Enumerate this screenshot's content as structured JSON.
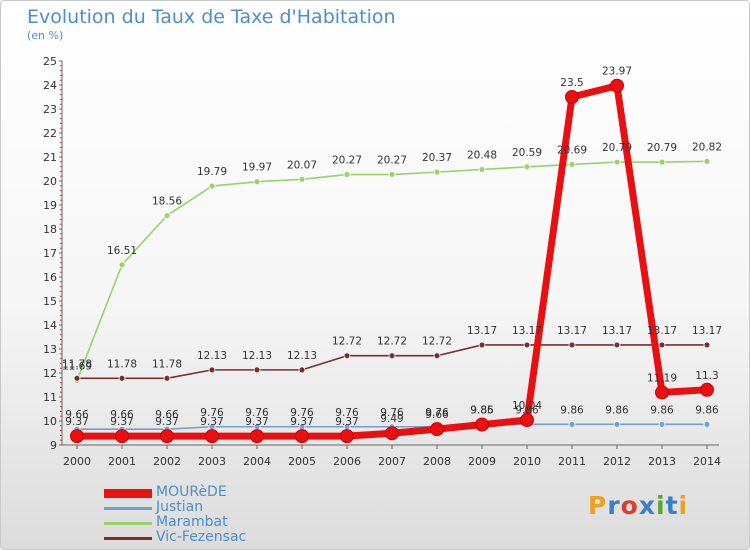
{
  "title": "Evolution du Taux de Taxe d'Habitation",
  "subtitle": "(en %)",
  "brand": {
    "letters": [
      "P",
      "r",
      "o",
      "x",
      "i",
      "t",
      "i"
    ],
    "colors": [
      "#f0a020",
      "#3a7fc8",
      "#d94030",
      "#3a7fc8",
      "#5aa830",
      "#3a7fc8",
      "#f0a020"
    ]
  },
  "chart_data": {
    "type": "line",
    "x": [
      "2000",
      "2001",
      "2002",
      "2003",
      "2004",
      "2005",
      "2006",
      "2007",
      "2008",
      "2009",
      "2010",
      "2011",
      "2012",
      "2013",
      "2014"
    ],
    "ylim": [
      9,
      25
    ],
    "yticks": [
      "9",
      "10",
      "11",
      "12",
      "13",
      "14",
      "15",
      "16",
      "17",
      "18",
      "19",
      "20",
      "21",
      "22",
      "23",
      "24",
      "25"
    ],
    "grid": false,
    "legend_position": "bottom-left",
    "series": [
      {
        "name": "MOURèDE",
        "color": "#e81010",
        "values": [
          9.37,
          9.37,
          9.37,
          9.37,
          9.37,
          9.37,
          9.37,
          9.49,
          9.66,
          9.85,
          10.04,
          23.5,
          23.97,
          11.19,
          11.3
        ],
        "labels": [
          "9.37",
          "9.37",
          "9.37",
          "9.37",
          "9.37",
          "9.37",
          "9.37",
          "9.49",
          "9.66",
          "9.85",
          "10.04",
          "23.5",
          "23.97",
          "11.19",
          "11.3"
        ]
      },
      {
        "name": "Justian",
        "color": "#6fa1d4",
        "values": [
          9.66,
          9.66,
          9.66,
          9.76,
          9.76,
          9.76,
          9.76,
          9.76,
          9.76,
          9.86,
          9.86,
          9.86,
          9.86,
          9.86,
          9.86
        ],
        "labels": [
          "9.66",
          "9.66",
          "9.66",
          "9.76",
          "9.76",
          "9.76",
          "9.76",
          "9.76",
          "9.76",
          "9.86",
          "9.86",
          "9.86",
          "9.86",
          "9.86",
          "9.86"
        ]
      },
      {
        "name": "Marambat",
        "color": "#96d46a",
        "values": [
          11.69,
          16.51,
          18.56,
          19.79,
          19.97,
          20.07,
          20.27,
          20.27,
          20.37,
          20.48,
          20.59,
          20.69,
          20.79,
          20.79,
          20.82
        ],
        "labels": [
          "11.69",
          "16.51",
          "18.56",
          "19.79",
          "19.97",
          "20.07",
          "20.27",
          "20.27",
          "20.37",
          "20.48",
          "20.59",
          "20.69",
          "20.79",
          "20.79",
          "20.82"
        ]
      },
      {
        "name": "Vic-Fezensac",
        "color": "#7a2e2e",
        "values": [
          11.78,
          11.78,
          11.78,
          12.13,
          12.13,
          12.13,
          12.72,
          12.72,
          12.72,
          13.17,
          13.17,
          13.17,
          13.17,
          13.17,
          13.17
        ],
        "labels": [
          "11.78",
          "11.78",
          "11.78",
          "12.13",
          "12.13",
          "12.13",
          "12.72",
          "12.72",
          "12.72",
          "13.17",
          "13.17",
          "13.17",
          "13.17",
          "13.17",
          "13.17"
        ]
      }
    ]
  }
}
